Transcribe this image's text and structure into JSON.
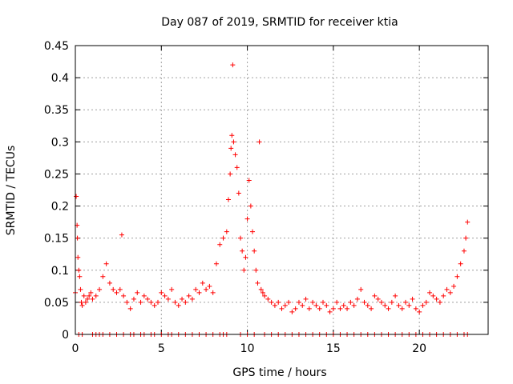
{
  "chart_data": {
    "type": "scatter",
    "title": "Day 087 of 2019, SRMTID for receiver ktia",
    "xlabel": "GPS time / hours",
    "ylabel": "SRMTID / TECUs",
    "xlim": [
      0,
      24
    ],
    "ylim": [
      0,
      0.45
    ],
    "xticks": [
      0,
      5,
      10,
      15,
      20
    ],
    "xtick_labels": [
      "0",
      "5",
      "10",
      "15",
      "20"
    ],
    "yticks": [
      0,
      0.05,
      0.1,
      0.15,
      0.2,
      0.25,
      0.3,
      0.35,
      0.4,
      0.45
    ],
    "ytick_labels": [
      "0",
      "0.05",
      "0.1",
      "0.15",
      "0.2",
      "0.25",
      "0.3",
      "0.35",
      "0.4",
      "0.45"
    ],
    "grid": true,
    "marker": "+",
    "series": [
      {
        "name": "SRMTID",
        "color": "#ff0000",
        "x": [
          0.0,
          0.05,
          0.1,
          0.12,
          0.15,
          0.2,
          0.25,
          0.3,
          0.35,
          0.4,
          0.5,
          0.6,
          0.7,
          0.8,
          0.9,
          1.0,
          1.2,
          1.4,
          1.6,
          1.8,
          2.0,
          2.2,
          2.4,
          2.6,
          2.7,
          2.8,
          3.0,
          3.2,
          3.4,
          3.6,
          3.8,
          4.0,
          4.2,
          4.4,
          4.6,
          4.8,
          5.0,
          5.2,
          5.4,
          5.6,
          5.8,
          6.0,
          6.2,
          6.4,
          6.6,
          6.8,
          7.0,
          7.2,
          7.4,
          7.6,
          7.8,
          8.0,
          8.2,
          8.4,
          8.6,
          8.8,
          8.9,
          9.0,
          9.05,
          9.1,
          9.15,
          9.2,
          9.3,
          9.4,
          9.5,
          9.6,
          9.7,
          9.8,
          9.9,
          10.0,
          10.1,
          10.2,
          10.3,
          10.4,
          10.5,
          10.6,
          10.7,
          10.8,
          10.9,
          11.0,
          11.2,
          11.4,
          11.6,
          11.8,
          12.0,
          12.2,
          12.4,
          12.6,
          12.8,
          13.0,
          13.2,
          13.4,
          13.6,
          13.8,
          14.0,
          14.2,
          14.4,
          14.6,
          14.8,
          15.0,
          15.2,
          15.4,
          15.6,
          15.8,
          16.0,
          16.2,
          16.4,
          16.6,
          16.8,
          17.0,
          17.2,
          17.4,
          17.6,
          17.8,
          18.0,
          18.2,
          18.4,
          18.6,
          18.8,
          19.0,
          19.2,
          19.4,
          19.6,
          19.8,
          20.0,
          20.2,
          20.4,
          20.6,
          20.8,
          21.0,
          21.2,
          21.4,
          21.6,
          21.8,
          22.0,
          22.2,
          22.4,
          22.6,
          22.7,
          22.8
        ],
        "y": [
          0.065,
          0.215,
          0.17,
          0.15,
          0.12,
          0.1,
          0.09,
          0.07,
          0.05,
          0.045,
          0.06,
          0.05,
          0.055,
          0.06,
          0.065,
          0.055,
          0.06,
          0.07,
          0.09,
          0.11,
          0.08,
          0.07,
          0.065,
          0.07,
          0.155,
          0.06,
          0.05,
          0.04,
          0.055,
          0.065,
          0.05,
          0.06,
          0.055,
          0.05,
          0.045,
          0.05,
          0.065,
          0.06,
          0.055,
          0.07,
          0.05,
          0.045,
          0.055,
          0.05,
          0.06,
          0.055,
          0.07,
          0.065,
          0.08,
          0.07,
          0.075,
          0.065,
          0.11,
          0.14,
          0.15,
          0.16,
          0.21,
          0.25,
          0.29,
          0.31,
          0.42,
          0.3,
          0.28,
          0.26,
          0.22,
          0.15,
          0.13,
          0.1,
          0.12,
          0.18,
          0.24,
          0.2,
          0.16,
          0.13,
          0.1,
          0.08,
          0.3,
          0.07,
          0.065,
          0.06,
          0.055,
          0.05,
          0.045,
          0.05,
          0.04,
          0.045,
          0.05,
          0.035,
          0.04,
          0.05,
          0.045,
          0.055,
          0.04,
          0.05,
          0.045,
          0.04,
          0.05,
          0.045,
          0.035,
          0.04,
          0.05,
          0.04,
          0.045,
          0.04,
          0.05,
          0.045,
          0.055,
          0.07,
          0.05,
          0.045,
          0.04,
          0.06,
          0.055,
          0.05,
          0.045,
          0.04,
          0.05,
          0.06,
          0.045,
          0.04,
          0.05,
          0.045,
          0.055,
          0.04,
          0.035,
          0.045,
          0.05,
          0.065,
          0.06,
          0.055,
          0.05,
          0.06,
          0.07,
          0.065,
          0.075,
          0.09,
          0.11,
          0.13,
          0.15,
          0.175
        ]
      },
      {
        "name": "zero-level",
        "color": "#ff0000",
        "x": [
          0.2,
          0.4,
          1.0,
          1.2,
          1.4,
          1.6,
          2.0,
          2.4,
          2.8,
          3.2,
          3.4,
          3.8,
          4.0,
          4.4,
          4.6,
          5.0,
          5.4,
          5.6,
          6.0,
          6.4,
          6.8,
          7.2,
          7.6,
          8.0,
          8.4,
          8.6,
          8.8,
          9.6,
          10.0,
          10.4,
          11.0,
          11.4,
          11.8,
          12.2,
          12.6,
          13.0,
          13.4,
          13.8,
          14.2,
          14.6,
          15.0,
          15.4,
          15.8,
          16.2,
          16.6,
          17.0,
          17.4,
          17.8,
          18.2,
          18.6,
          19.0,
          19.4,
          19.8,
          20.2,
          20.6,
          21.0,
          21.4,
          21.8,
          22.2,
          22.6,
          22.8
        ],
        "y": [
          0,
          0,
          0,
          0,
          0,
          0,
          0,
          0,
          0,
          0,
          0,
          0,
          0,
          0,
          0,
          0,
          0,
          0,
          0,
          0,
          0,
          0,
          0,
          0,
          0,
          0,
          0,
          0,
          0,
          0,
          0,
          0,
          0,
          0,
          0,
          0,
          0,
          0,
          0,
          0,
          0,
          0,
          0,
          0,
          0,
          0,
          0,
          0,
          0,
          0,
          0,
          0,
          0,
          0,
          0,
          0,
          0,
          0,
          0,
          0,
          0
        ]
      }
    ]
  }
}
